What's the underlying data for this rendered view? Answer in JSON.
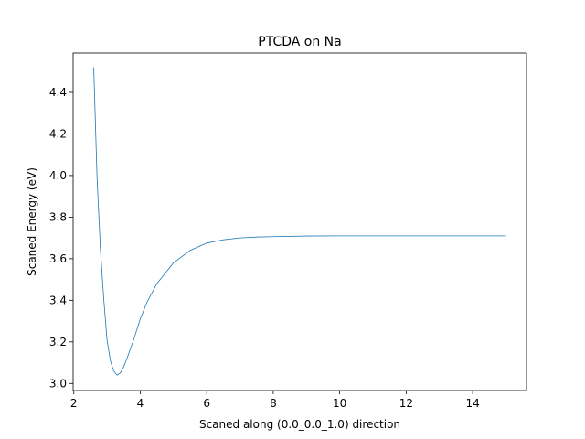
{
  "chart_data": {
    "type": "line",
    "title": "PTCDA on Na",
    "xlabel": "Scaned along (0.0_0.0_1.0) direction",
    "ylabel": "Scaned Energy (eV)",
    "xlim": [
      1.98,
      15.62
    ],
    "ylim": [
      2.966,
      4.589
    ],
    "x_ticks": [
      2,
      4,
      6,
      8,
      10,
      12,
      14
    ],
    "y_ticks": [
      3.0,
      3.2,
      3.4,
      3.6,
      3.8,
      4.0,
      4.2,
      4.4
    ],
    "grid": false,
    "series": [
      {
        "color": "#1f77b4",
        "x": [
          2.6,
          2.7,
          2.8,
          2.9,
          3.0,
          3.1,
          3.2,
          3.3,
          3.4,
          3.5,
          3.6,
          3.8,
          4.0,
          4.2,
          4.5,
          5.0,
          5.5,
          6.0,
          6.5,
          7.0,
          7.5,
          8.0,
          9.0,
          10.0,
          12.0,
          15.0
        ],
        "y": [
          4.52,
          3.99,
          3.65,
          3.41,
          3.21,
          3.11,
          3.06,
          3.04,
          3.05,
          3.08,
          3.12,
          3.21,
          3.31,
          3.39,
          3.48,
          3.58,
          3.64,
          3.675,
          3.691,
          3.7,
          3.704,
          3.706,
          3.709,
          3.71,
          3.71,
          3.71
        ]
      }
    ]
  }
}
